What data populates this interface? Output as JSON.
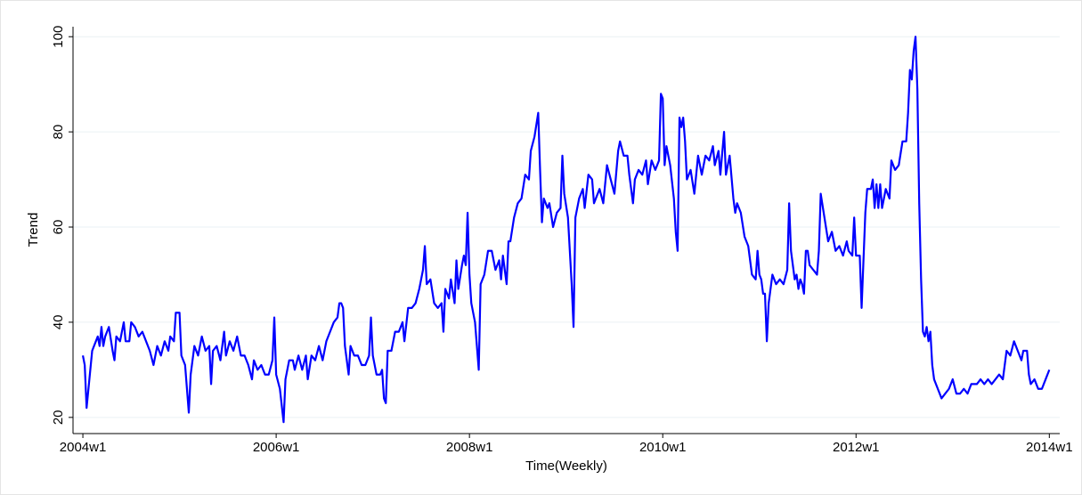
{
  "chart_data": {
    "type": "line",
    "x_label": "Time(Weekly)",
    "y_label": "Trend",
    "xlim": [
      2282.7,
      2813.6
    ],
    "ylim": [
      16.6,
      102.1
    ],
    "xticks": [
      {
        "value": 2288,
        "label": "2004w1"
      },
      {
        "value": 2392,
        "label": "2006w1"
      },
      {
        "value": 2496,
        "label": "2008w1"
      },
      {
        "value": 2600,
        "label": "2010w1"
      },
      {
        "value": 2704,
        "label": "2012w1"
      },
      {
        "value": 2808,
        "label": "2014w1"
      }
    ],
    "yticks": [
      20,
      40,
      60,
      80,
      100
    ],
    "grid": true,
    "series": [
      {
        "color": "#0000ff",
        "x": [
          2288,
          2289,
          2290,
          2292,
          2293,
          2295,
          2296,
          2297,
          2298,
          2299,
          2300,
          2302,
          2304,
          2305,
          2306,
          2308,
          2310,
          2311,
          2313,
          2314,
          2316,
          2318,
          2320,
          2322,
          2324,
          2326,
          2328,
          2330,
          2332,
          2334,
          2335,
          2337,
          2338,
          2340,
          2341,
          2343,
          2344,
          2345,
          2346,
          2348,
          2350,
          2352,
          2354,
          2356,
          2357,
          2358,
          2360,
          2362,
          2364,
          2365,
          2367,
          2369,
          2371,
          2373,
          2375,
          2377,
          2379,
          2380,
          2382,
          2384,
          2386,
          2388,
          2390,
          2391,
          2392,
          2394,
          2396,
          2397,
          2399,
          2401,
          2402,
          2404,
          2406,
          2408,
          2409,
          2411,
          2413,
          2415,
          2417,
          2419,
          2421,
          2423,
          2425,
          2426,
          2427,
          2428,
          2429,
          2431,
          2432,
          2434,
          2436,
          2438,
          2440,
          2442,
          2443,
          2444,
          2446,
          2448,
          2449,
          2450,
          2451,
          2452,
          2454,
          2456,
          2458,
          2460,
          2461,
          2463,
          2465,
          2467,
          2469,
          2470,
          2471,
          2472,
          2473,
          2475,
          2477,
          2479,
          2481,
          2482,
          2483,
          2485,
          2486,
          2488,
          2489,
          2490,
          2492,
          2493,
          2494,
          2495,
          2496,
          2497,
          2499,
          2501,
          2502,
          2504,
          2506,
          2508,
          2510,
          2512,
          2513,
          2514,
          2516,
          2517,
          2518,
          2520,
          2522,
          2524,
          2526,
          2528,
          2529,
          2531,
          2533,
          2534,
          2535,
          2536,
          2538,
          2539,
          2541,
          2543,
          2545,
          2546,
          2547,
          2549,
          2551,
          2552,
          2553,
          2555,
          2557,
          2558,
          2560,
          2562,
          2563,
          2564,
          2566,
          2568,
          2570,
          2572,
          2574,
          2576,
          2577,
          2579,
          2581,
          2582,
          2584,
          2585,
          2587,
          2589,
          2591,
          2592,
          2594,
          2596,
          2598,
          2599,
          2600,
          2601,
          2602,
          2604,
          2606,
          2607,
          2608,
          2609,
          2610,
          2611,
          2612,
          2613,
          2615,
          2617,
          2619,
          2621,
          2623,
          2625,
          2627,
          2628,
          2630,
          2631,
          2633,
          2634,
          2636,
          2638,
          2639,
          2640,
          2642,
          2644,
          2646,
          2648,
          2650,
          2651,
          2652,
          2653,
          2654,
          2655,
          2656,
          2657,
          2659,
          2661,
          2663,
          2665,
          2667,
          2668,
          2669,
          2671,
          2672,
          2673,
          2674,
          2675,
          2676,
          2677,
          2678,
          2679,
          2681,
          2683,
          2684,
          2685,
          2687,
          2689,
          2691,
          2693,
          2695,
          2697,
          2699,
          2700,
          2702,
          2703,
          2704,
          2706,
          2707,
          2709,
          2710,
          2712,
          2713,
          2714,
          2715,
          2716,
          2717,
          2718,
          2720,
          2722,
          2723,
          2725,
          2727,
          2729,
          2731,
          2732,
          2733,
          2734,
          2735,
          2736,
          2737,
          2738,
          2739,
          2740,
          2741,
          2742,
          2743,
          2744,
          2745,
          2746,
          2748,
          2750,
          2752,
          2754,
          2756,
          2758,
          2760,
          2762,
          2764,
          2766,
          2767,
          2769,
          2771,
          2773,
          2775,
          2777,
          2779,
          2781,
          2783,
          2785,
          2787,
          2789,
          2791,
          2793,
          2794,
          2796,
          2797,
          2798,
          2800,
          2802,
          2804,
          2806,
          2808
        ],
        "values": [
          33,
          31,
          22,
          30,
          34,
          36,
          37,
          35,
          39,
          35,
          37,
          39,
          34,
          32,
          37,
          36,
          40,
          36,
          36,
          40,
          39,
          37,
          38,
          36,
          34,
          31,
          35,
          33,
          36,
          34,
          37,
          36,
          42,
          42,
          33,
          31,
          26,
          21,
          29,
          35,
          33,
          37,
          34,
          35,
          27,
          34,
          35,
          32,
          38,
          33,
          36,
          34,
          37,
          33,
          33,
          31,
          28,
          32,
          30,
          31,
          29,
          29,
          32,
          41,
          29,
          26,
          19,
          28,
          32,
          32,
          30,
          33,
          30,
          33,
          28,
          33,
          32,
          35,
          32,
          36,
          38,
          40,
          41,
          44,
          44,
          43,
          35,
          29,
          35,
          33,
          33,
          31,
          31,
          33,
          41,
          33,
          29,
          29,
          30,
          24,
          23,
          34,
          34,
          38,
          38,
          40,
          36,
          43,
          43,
          44,
          47,
          49,
          51,
          56,
          48,
          49,
          44,
          43,
          44,
          38,
          47,
          45,
          49,
          44,
          53,
          47,
          52,
          54,
          52,
          63,
          50,
          44,
          40,
          30,
          48,
          50,
          55,
          55,
          51,
          53,
          49,
          54,
          48,
          57,
          57,
          62,
          65,
          66,
          71,
          70,
          76,
          79,
          84,
          72,
          61,
          66,
          64,
          65,
          60,
          63,
          64,
          75,
          67,
          62,
          48,
          39,
          62,
          66,
          68,
          64,
          71,
          70,
          65,
          66,
          68,
          65,
          73,
          70,
          67,
          76,
          78,
          75,
          75,
          71,
          65,
          70,
          72,
          71,
          74,
          69,
          74,
          72,
          74,
          88,
          87,
          73,
          77,
          73,
          66,
          59,
          55,
          83,
          81,
          83,
          78,
          70,
          72,
          67,
          75,
          71,
          75,
          74,
          77,
          73,
          76,
          71,
          80,
          71,
          75,
          66,
          63,
          65,
          63,
          58,
          56,
          50,
          49,
          55,
          50,
          49,
          46,
          46,
          36,
          44,
          50,
          48,
          49,
          48,
          51,
          65,
          55,
          49,
          50,
          47,
          49,
          48,
          46,
          55,
          55,
          52,
          51,
          50,
          55,
          67,
          62,
          57,
          59,
          55,
          56,
          54,
          57,
          55,
          54,
          62,
          54,
          54,
          43,
          63,
          68,
          68,
          70,
          64,
          69,
          64,
          69,
          64,
          68,
          66,
          74,
          72,
          73,
          78,
          78,
          84,
          93,
          91,
          97,
          100,
          89,
          65,
          49,
          38,
          37,
          39,
          36,
          38,
          31,
          28,
          26,
          24,
          25,
          26,
          28,
          25,
          25,
          26,
          25,
          27,
          27,
          27,
          28,
          27,
          28,
          27,
          28,
          29,
          28,
          34,
          33,
          36,
          34,
          32,
          34,
          34,
          29,
          27,
          28,
          26,
          26,
          28,
          30
        ]
      }
    ]
  }
}
